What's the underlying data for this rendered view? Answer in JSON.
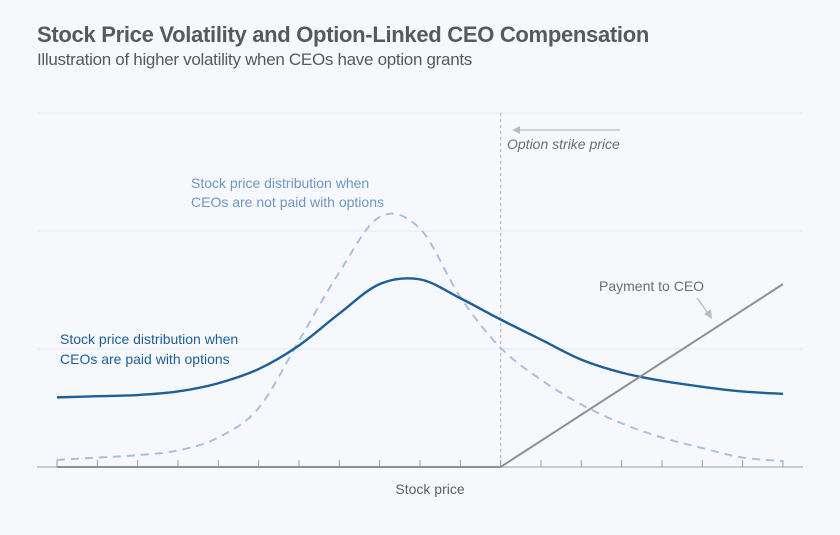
{
  "header": {
    "title": "Stock Price Volatility and Option-Linked CEO Compensation",
    "subtitle": "Illustration of higher volatility when CEOs have option grants"
  },
  "colors": {
    "with_options": "#1d5f99",
    "without_options": "#a9c0df",
    "without_options_label": "#6d97c6",
    "payment": "#8d8f93",
    "strike": "#b8bcc2",
    "grid": "#e4e7ec",
    "axis": "#9a9da2",
    "text": "#5c6066"
  },
  "chart_data": {
    "type": "line",
    "title": "Stock Price Volatility and Option-Linked CEO Compensation",
    "subtitle": "Illustration of higher volatility when CEOs have option grants",
    "xlabel": "Stock price",
    "ylabel": "",
    "x": [
      0,
      1,
      2,
      3,
      4,
      5,
      6,
      7,
      8,
      9,
      10,
      11,
      12,
      13,
      14,
      15,
      16,
      17,
      18
    ],
    "xlim": [
      -0.5,
      18.5
    ],
    "ylim": [
      0,
      3
    ],
    "grid": true,
    "series": [
      {
        "name": "Stock price distribution when CEOs are paid with options",
        "style": "solid",
        "values": [
          0.59,
          0.6,
          0.61,
          0.64,
          0.71,
          0.83,
          1.03,
          1.3,
          1.55,
          1.59,
          1.43,
          1.25,
          1.08,
          0.91,
          0.8,
          0.73,
          0.68,
          0.64,
          0.62
        ]
      },
      {
        "name": "Stock price distribution when CEOs are not paid with options",
        "style": "dashed",
        "values": [
          0.06,
          0.08,
          0.1,
          0.14,
          0.25,
          0.5,
          1.07,
          1.65,
          2.12,
          2.02,
          1.44,
          1.01,
          0.74,
          0.53,
          0.37,
          0.25,
          0.16,
          0.08,
          0.05
        ]
      },
      {
        "name": "Payment to CEO",
        "style": "solid",
        "x": [
          0,
          11,
          18
        ],
        "values": [
          0,
          0,
          1.55
        ]
      }
    ],
    "strike_price_x": 11,
    "annotations": [
      {
        "text": "Option strike price",
        "arrow": "left"
      },
      {
        "text": "Payment to CEO",
        "arrow": "down"
      },
      {
        "text_lines": [
          "Stock price distribution when",
          "CEOs are not paid with options"
        ]
      },
      {
        "text_lines": [
          "Stock price distribution when",
          "CEOs are paid with options"
        ]
      }
    ]
  },
  "labels": {
    "strike": "Option strike price",
    "payment": "Payment to CEO",
    "no_options_1": "Stock price distribution when",
    "no_options_2": "CEOs are not paid with options",
    "with_options_1": "Stock price distribution when",
    "with_options_2": "CEOs are paid with options",
    "xlabel": "Stock price"
  }
}
